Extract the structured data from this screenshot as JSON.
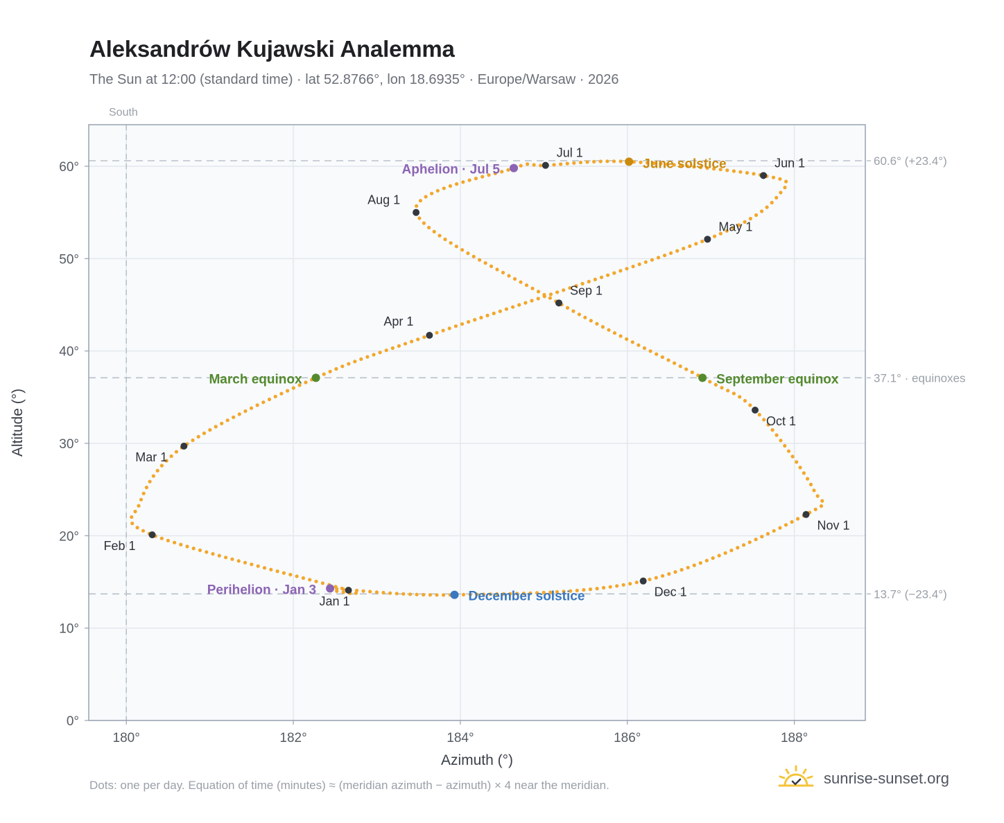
{
  "header": {
    "title": "Aleksandrów Kujawski Analemma",
    "subtitle": "The Sun at 12:00 (standard time) · lat 52.8766°, lon 18.6935° · Europe/Warsaw · 2026"
  },
  "footer": {
    "note": "Dots: one per day. Equation of time (minutes) ≈ (meridian azimuth − azimuth) × 4 near the meridian.",
    "brand": "sunrise-sunset.org",
    "brand_icon": "sun-logo-icon"
  },
  "colors": {
    "path": "#f2a72b",
    "month_dot": "#333840",
    "equinox": "#548a2e",
    "june_solstice": "#cc8a0d",
    "december_solstice": "#3a78bf",
    "aphelion_perihelion": "#8c64b4",
    "plot_background": "#f8fafc",
    "grid": "#e3e8ee",
    "reference_line": "#b9c1c9"
  },
  "chart_data": {
    "type": "scatter",
    "xlabel": "Azimuth (°)",
    "ylabel": "Altitude (°)",
    "xlim": [
      179.55,
      188.85
    ],
    "ylim": [
      0,
      64.5
    ],
    "xticks": [
      180,
      182,
      184,
      186,
      188
    ],
    "yticks": [
      0,
      10,
      20,
      30,
      40,
      50,
      60
    ],
    "xtick_labels": [
      "180°",
      "182°",
      "184°",
      "186°",
      "188°"
    ],
    "ytick_labels": [
      "0°",
      "10°",
      "20°",
      "30°",
      "40°",
      "50°",
      "60°"
    ],
    "grid": true,
    "meridian": {
      "azimuth": 180,
      "label": "South"
    },
    "reference_lines": [
      {
        "altitude": 60.6,
        "label": "60.6° (+23.4°)"
      },
      {
        "altitude": 37.1,
        "label": "37.1° · equinoxes"
      },
      {
        "altitude": 13.7,
        "label": "13.7° (−23.4°)"
      }
    ],
    "path_note": "one dot per day",
    "month_markers": [
      {
        "label": "Jan 1",
        "azimuth": 182.66,
        "altitude": 14.1
      },
      {
        "label": "Feb 1",
        "azimuth": 180.31,
        "altitude": 20.1
      },
      {
        "label": "Mar 1",
        "azimuth": 180.69,
        "altitude": 29.7
      },
      {
        "label": "Apr 1",
        "azimuth": 183.63,
        "altitude": 41.7
      },
      {
        "label": "May 1",
        "azimuth": 186.96,
        "altitude": 52.1
      },
      {
        "label": "Jun 1",
        "azimuth": 187.63,
        "altitude": 59.0
      },
      {
        "label": "Jul 1",
        "azimuth": 185.02,
        "altitude": 60.1
      },
      {
        "label": "Aug 1",
        "azimuth": 183.47,
        "altitude": 55.0
      },
      {
        "label": "Sep 1",
        "azimuth": 185.18,
        "altitude": 45.2
      },
      {
        "label": "Oct 1",
        "azimuth": 187.53,
        "altitude": 33.6
      },
      {
        "label": "Nov 1",
        "azimuth": 188.14,
        "altitude": 22.3
      },
      {
        "label": "Dec 1",
        "azimuth": 186.19,
        "altitude": 15.1
      }
    ],
    "events": [
      {
        "label": "March equinox",
        "azimuth": 182.27,
        "altitude": 37.1,
        "color": "#548a2e"
      },
      {
        "label": "June solstice",
        "azimuth": 186.02,
        "altitude": 60.5,
        "color": "#cc8a0d"
      },
      {
        "label": "September equinox",
        "azimuth": 186.9,
        "altitude": 37.1,
        "color": "#548a2e"
      },
      {
        "label": "December solstice",
        "azimuth": 183.93,
        "altitude": 13.6,
        "color": "#3a78bf"
      },
      {
        "label": "Aphelion · Jul 5",
        "azimuth": 184.64,
        "altitude": 59.8,
        "color": "#8c64b4"
      },
      {
        "label": "Perihelion · Jan 3",
        "azimuth": 182.44,
        "altitude": 14.3,
        "color": "#8c64b4"
      }
    ],
    "extremes": {
      "west_summer": {
        "azimuth": 183.47,
        "altitude": 55.0
      },
      "east_summer": {
        "azimuth": 187.85,
        "altitude": 57.3
      },
      "west_winter": {
        "azimuth": 180.16,
        "altitude": 23.5
      },
      "east_winter": {
        "azimuth": 188.23,
        "altitude": 25.0
      }
    }
  }
}
